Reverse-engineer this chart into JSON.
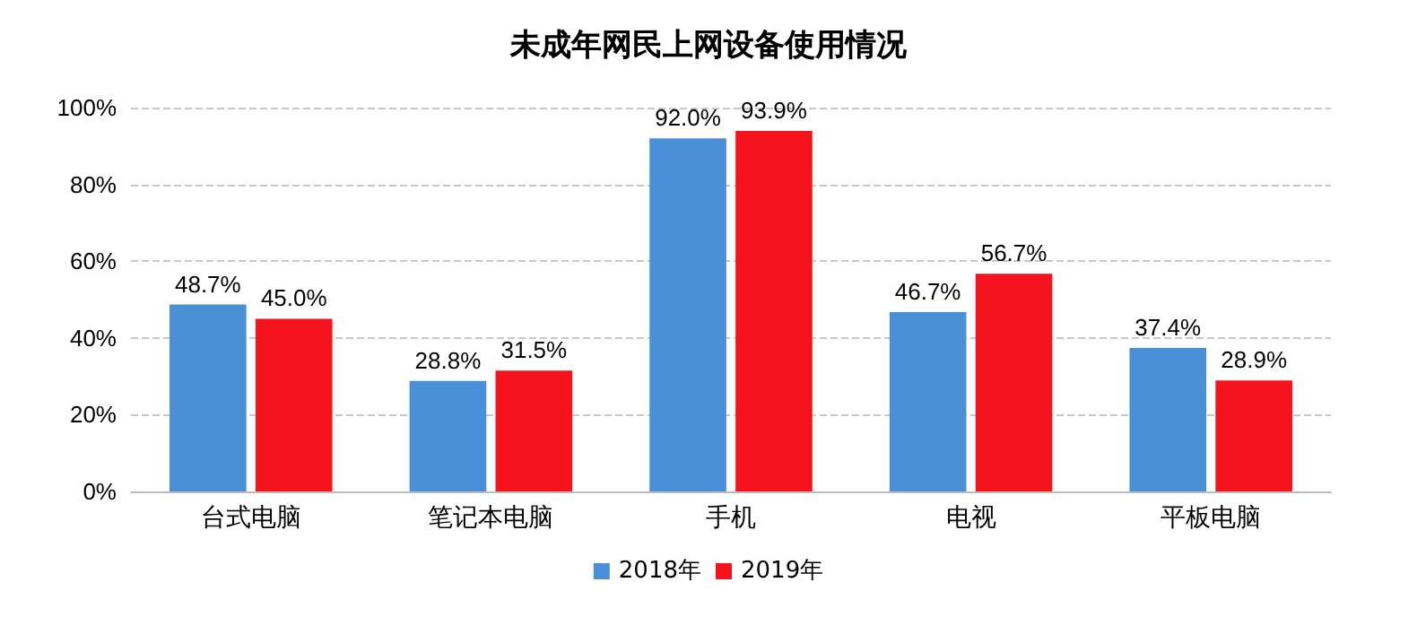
{
  "chart_data": {
    "type": "bar",
    "title": "未成年网民上网设备使用情况",
    "categories": [
      "台式电脑",
      "笔记本电脑",
      "手机",
      "电视",
      "平板电脑"
    ],
    "series": [
      {
        "name": "2018年",
        "color": "#4a90d9",
        "values": [
          48.7,
          28.8,
          92.0,
          46.7,
          37.4
        ],
        "value_labels": [
          "48.7%",
          "28.8%",
          "92.0%",
          "46.7%",
          "37.4%"
        ]
      },
      {
        "name": "2019年",
        "color": "#f5141e",
        "values": [
          45.0,
          31.5,
          93.9,
          56.7,
          28.9
        ],
        "value_labels": [
          "45.0%",
          "31.5%",
          "93.9%",
          "56.7%",
          "28.9%"
        ]
      }
    ],
    "ylim": [
      0,
      100
    ],
    "yticks": [
      {
        "value": 0,
        "label": "0%"
      },
      {
        "value": 20,
        "label": "20%"
      },
      {
        "value": 40,
        "label": "40%"
      },
      {
        "value": 60,
        "label": "60%"
      },
      {
        "value": 80,
        "label": "80%"
      },
      {
        "value": 100,
        "label": "100%"
      }
    ],
    "grid": "y",
    "legend": "bottom"
  }
}
